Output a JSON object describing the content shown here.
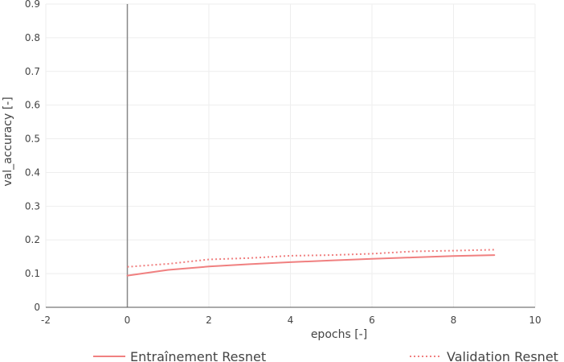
{
  "chart_data": {
    "type": "line",
    "xlabel": "epochs [-]",
    "ylabel": "val_accuracy [-]",
    "xlim": [
      -2,
      10
    ],
    "ylim": [
      0,
      0.9
    ],
    "x_ticks": [
      "-2",
      "0",
      "2",
      "4",
      "6",
      "8",
      "10"
    ],
    "y_ticks": [
      "0",
      "0.1",
      "0.2",
      "0.3",
      "0.4",
      "0.5",
      "0.6",
      "0.7",
      "0.8",
      "0.9"
    ],
    "grid": true,
    "legend_position": "bottom",
    "series": [
      {
        "name": "Entraînement Resnet",
        "style": "solid",
        "color": "#f08080",
        "x": [
          0,
          1,
          2,
          3,
          4,
          5,
          6,
          7,
          8,
          9
        ],
        "y": [
          0.094,
          0.111,
          0.121,
          0.128,
          0.134,
          0.139,
          0.144,
          0.148,
          0.152,
          0.155
        ]
      },
      {
        "name": "Validation Resnet",
        "style": "dotted",
        "color": "#f08080",
        "x": [
          0,
          1,
          2,
          3,
          4,
          5,
          6,
          7,
          8,
          9
        ],
        "y": [
          0.12,
          0.129,
          0.142,
          0.146,
          0.153,
          0.155,
          0.159,
          0.166,
          0.168,
          0.171
        ]
      }
    ]
  }
}
